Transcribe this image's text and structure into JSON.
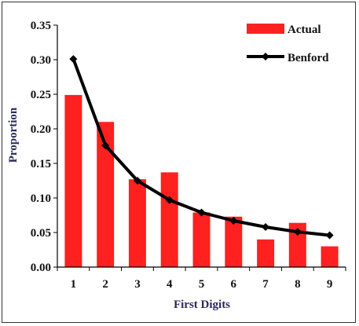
{
  "chart_data": {
    "type": "bar",
    "categories": [
      "1",
      "2",
      "3",
      "4",
      "5",
      "6",
      "7",
      "8",
      "9"
    ],
    "series": [
      {
        "name": "Actual",
        "kind": "bar",
        "color": "#ff2020",
        "values": [
          0.249,
          0.21,
          0.127,
          0.137,
          0.079,
          0.073,
          0.04,
          0.064,
          0.03
        ]
      },
      {
        "name": "Benford",
        "kind": "line",
        "color": "#000000",
        "marker": "diamond",
        "values": [
          0.301,
          0.176,
          0.125,
          0.097,
          0.079,
          0.067,
          0.058,
          0.051,
          0.046
        ]
      }
    ],
    "title": "",
    "xlabel": "First Digits",
    "ylabel": "Proportion",
    "ylim": [
      0,
      0.35
    ],
    "yticks": [
      "0.00",
      "0.05",
      "0.10",
      "0.15",
      "0.20",
      "0.25",
      "0.30",
      "0.35"
    ],
    "grid": false,
    "legend": "top-right",
    "axis_title_color": "#2a2a5a"
  }
}
